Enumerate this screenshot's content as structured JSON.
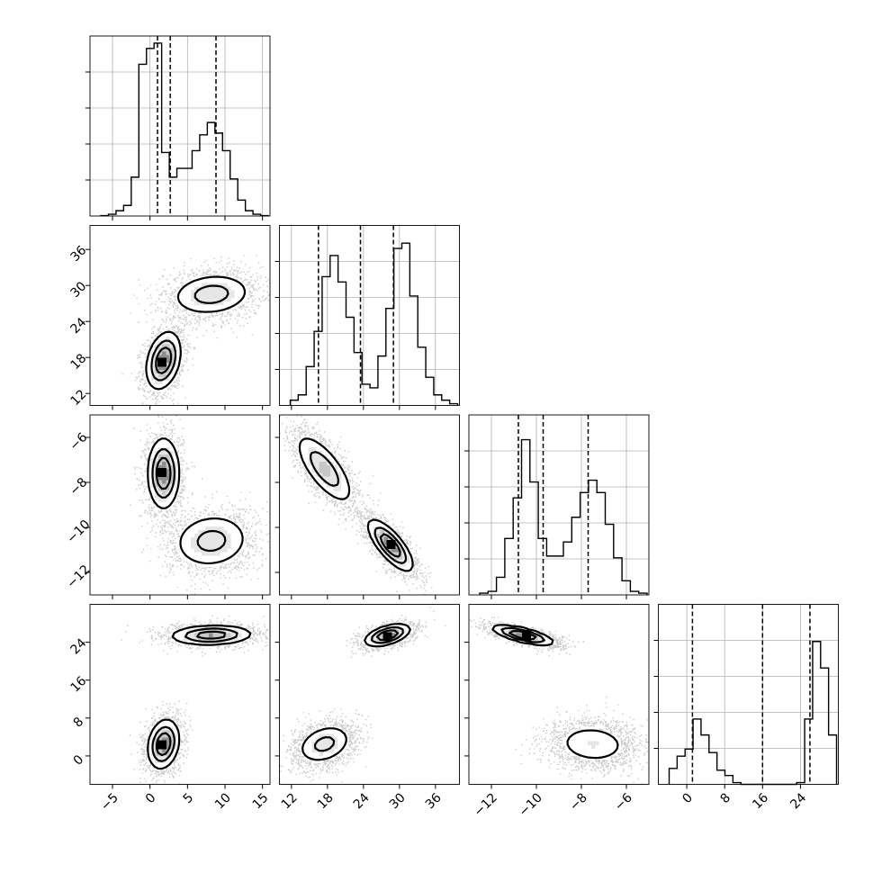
{
  "chart_data": {
    "type": "corner",
    "params": [
      {
        "range": [
          -8,
          16
        ],
        "ticks": [
          -5,
          0,
          5,
          10,
          15
        ],
        "tick_labels": [
          "−5",
          "0",
          "5",
          "10",
          "15"
        ],
        "quantiles": [
          1.0,
          2.7,
          8.8
        ],
        "hist": [
          0.002,
          0.01,
          0.03,
          0.06,
          0.22,
          0.86,
          0.95,
          0.98,
          0.36,
          0.22,
          0.27,
          0.27,
          0.37,
          0.46,
          0.53,
          0.47,
          0.37,
          0.21,
          0.09,
          0.03,
          0.01,
          0.002
        ]
      },
      {
        "range": [
          10,
          40
        ],
        "ticks": [
          12,
          18,
          24,
          30,
          36
        ],
        "tick_labels": [
          "12",
          "18",
          "24",
          "30",
          "36"
        ],
        "quantiles": [
          16.5,
          23.5,
          29.0
        ],
        "hist": [
          0.03,
          0.06,
          0.22,
          0.42,
          0.73,
          0.85,
          0.7,
          0.5,
          0.3,
          0.12,
          0.1,
          0.28,
          0.55,
          0.89,
          0.92,
          0.62,
          0.33,
          0.16,
          0.06,
          0.03,
          0.01
        ]
      },
      {
        "range": [
          -13,
          -5
        ],
        "ticks": [
          -12,
          -10,
          -8,
          -6
        ],
        "tick_labels": [
          "−12",
          "−10",
          "−8",
          "−6"
        ],
        "quantiles": [
          -10.8,
          -9.7,
          -7.7
        ],
        "hist": [
          0.01,
          0.02,
          0.1,
          0.32,
          0.55,
          0.88,
          0.64,
          0.32,
          0.22,
          0.22,
          0.3,
          0.44,
          0.58,
          0.65,
          0.58,
          0.4,
          0.21,
          0.08,
          0.02,
          0.01
        ]
      },
      {
        "range": [
          -6,
          32
        ],
        "ticks": [
          0,
          8,
          16,
          24
        ],
        "tick_labels": [
          "0",
          "8",
          "16",
          "24"
        ],
        "quantiles": [
          1.2,
          16.0,
          26.0
        ],
        "hist": [
          0.09,
          0.16,
          0.2,
          0.37,
          0.28,
          0.18,
          0.08,
          0.05,
          0.01,
          0.0,
          0.0,
          0.0,
          0.0,
          0.0,
          0.0,
          0.0,
          0.01,
          0.37,
          0.81,
          0.66,
          0.28
        ]
      }
    ],
    "blobs": [
      [
        {
          "i": 1,
          "j": 0,
          "mx": 1.8,
          "my": 17.5,
          "sx": 1.1,
          "sy": 2.3,
          "rho": 0.3,
          "w": 0.52
        },
        {
          "i": 1,
          "j": 0,
          "mx": 8.2,
          "my": 28.5,
          "sx": 2.6,
          "sy": 1.7,
          "rho": 0.15,
          "w": 0.48
        }
      ],
      [
        {
          "i": 2,
          "j": 0,
          "mx": 1.8,
          "my": -7.6,
          "sx": 1.0,
          "sy": 0.75,
          "rho": 0.0,
          "w": 0.52
        },
        {
          "i": 2,
          "j": 0,
          "mx": 8.2,
          "my": -10.6,
          "sx": 2.5,
          "sy": 0.6,
          "rho": 0.1,
          "w": 0.48
        }
      ],
      [
        {
          "i": 2,
          "j": 1,
          "mx": 17.5,
          "my": -7.4,
          "sx": 2.3,
          "sy": 0.75,
          "rho": -0.72,
          "w": 0.52
        },
        {
          "i": 2,
          "j": 1,
          "mx": 28.5,
          "my": -10.8,
          "sx": 1.8,
          "sy": 0.55,
          "rho": -0.75,
          "w": 0.48
        }
      ],
      [
        {
          "i": 3,
          "j": 0,
          "mx": 1.8,
          "my": 2.5,
          "sx": 1.0,
          "sy": 2.5,
          "rho": 0.2,
          "w": 0.52
        },
        {
          "i": 3,
          "j": 0,
          "mx": 8.2,
          "my": 25.5,
          "sx": 2.6,
          "sy": 1.0,
          "rho": 0.1,
          "w": 0.48
        }
      ],
      [
        {
          "i": 3,
          "j": 1,
          "mx": 17.5,
          "my": 2.5,
          "sx": 2.2,
          "sy": 2.0,
          "rho": 0.3,
          "w": 0.52
        },
        {
          "i": 3,
          "j": 1,
          "mx": 28.0,
          "my": 25.5,
          "sx": 1.8,
          "sy": 1.1,
          "rho": 0.5,
          "w": 0.48
        }
      ],
      [
        {
          "i": 3,
          "j": 2,
          "mx": -10.6,
          "my": 25.5,
          "sx": 0.65,
          "sy": 1.0,
          "rho": -0.7,
          "w": 0.48
        },
        {
          "i": 3,
          "j": 2,
          "mx": -7.5,
          "my": 2.5,
          "sx": 0.85,
          "sy": 2.2,
          "rho": -0.1,
          "w": 0.52
        }
      ]
    ]
  }
}
